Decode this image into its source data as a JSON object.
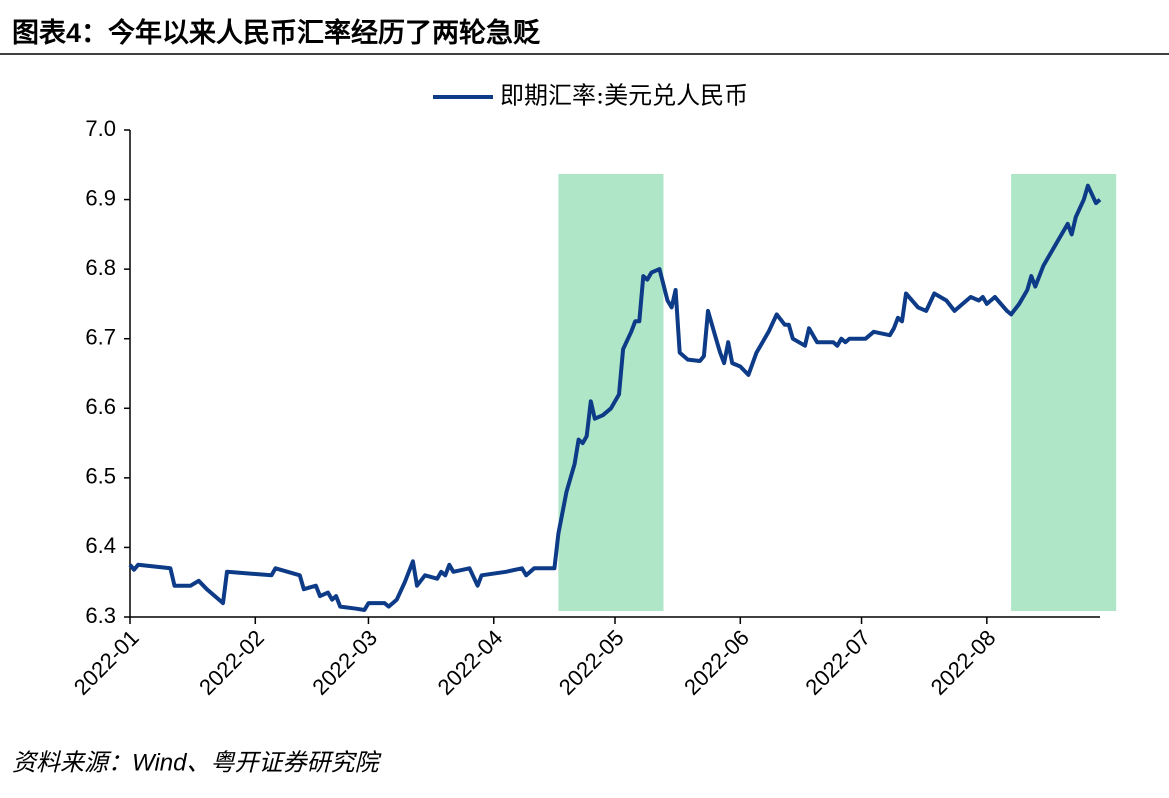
{
  "chart_data": {
    "type": "line",
    "title": "图表4：今年以来人民币汇率经历了两轮急贬",
    "source": "资料来源：Wind、粤开证券研究院",
    "x": [
      0,
      1,
      2,
      10,
      11,
      15,
      17,
      19,
      21,
      23,
      24,
      35,
      36,
      42,
      43,
      46,
      47,
      49,
      50,
      51,
      52,
      56,
      58,
      59,
      63,
      64,
      66,
      68,
      70,
      71,
      73,
      76,
      77,
      78,
      79,
      80,
      84,
      86,
      87,
      93,
      97,
      98,
      100,
      105,
      106,
      108,
      110,
      111,
      112,
      113,
      114,
      115,
      117,
      119,
      121,
      122,
      124,
      125,
      126,
      127,
      128,
      129,
      131,
      133,
      134,
      135,
      136,
      138,
      141,
      142,
      143,
      145,
      146,
      147,
      148,
      149,
      151,
      153,
      155,
      156,
      158,
      160,
      162,
      163,
      164,
      167,
      168,
      170,
      174,
      175,
      176,
      177,
      178,
      182,
      184,
      188,
      189,
      190,
      191,
      192,
      195,
      197,
      199,
      202,
      204,
      206,
      208,
      210,
      211,
      212,
      214,
      217,
      218,
      220,
      222,
      223,
      224,
      226,
      228,
      230,
      232,
      233,
      234,
      236,
      237,
      239,
      240
    ],
    "series": [
      {
        "name": "即期汇率:美元兑人民币",
        "color": "#0d3b87",
        "values": [
          6.375,
          6.368,
          6.375,
          6.37,
          6.345,
          6.345,
          6.352,
          6.34,
          6.33,
          6.32,
          6.365,
          6.36,
          6.37,
          6.36,
          6.34,
          6.345,
          6.33,
          6.335,
          6.325,
          6.33,
          6.315,
          6.312,
          6.31,
          6.32,
          6.32,
          6.315,
          6.325,
          6.35,
          6.38,
          6.345,
          6.36,
          6.355,
          6.365,
          6.36,
          6.375,
          6.365,
          6.37,
          6.345,
          6.36,
          6.365,
          6.37,
          6.36,
          6.37,
          6.37,
          6.42,
          6.48,
          6.52,
          6.555,
          6.55,
          6.56,
          6.61,
          6.585,
          6.59,
          6.6,
          6.62,
          6.685,
          6.71,
          6.725,
          6.725,
          6.79,
          6.785,
          6.795,
          6.8,
          6.755,
          6.745,
          6.77,
          6.68,
          6.67,
          6.668,
          6.675,
          6.74,
          6.7,
          6.68,
          6.665,
          6.695,
          6.665,
          6.66,
          6.648,
          6.68,
          6.69,
          6.71,
          6.735,
          6.72,
          6.72,
          6.7,
          6.69,
          6.715,
          6.695,
          6.695,
          6.69,
          6.7,
          6.695,
          6.7,
          6.7,
          6.71,
          6.705,
          6.715,
          6.73,
          6.725,
          6.765,
          6.745,
          6.74,
          6.765,
          6.755,
          6.74,
          6.75,
          6.76,
          6.755,
          6.76,
          6.75,
          6.76,
          6.74,
          6.735,
          6.75,
          6.77,
          6.79,
          6.775,
          6.805,
          6.825,
          6.845,
          6.865,
          6.85,
          6.875,
          6.9,
          6.92,
          6.895,
          6.9
        ]
      }
    ],
    "shaded_ranges": [
      [
        106,
        132
      ],
      [
        218,
        244
      ]
    ],
    "shade_color": "#b0e6c8",
    "xlim": [
      0,
      240
    ],
    "xticks": [
      {
        "value": 0,
        "label": "2022-01"
      },
      {
        "value": 31,
        "label": "2022-02"
      },
      {
        "value": 59,
        "label": "2022-03"
      },
      {
        "value": 90,
        "label": "2022-04"
      },
      {
        "value": 120,
        "label": "2022-05"
      },
      {
        "value": 151,
        "label": "2022-06"
      },
      {
        "value": 181,
        "label": "2022-07"
      },
      {
        "value": 212,
        "label": "2022-08"
      }
    ],
    "ylim": [
      6.3,
      7.0
    ],
    "yticks": [
      6.3,
      6.4,
      6.5,
      6.6,
      6.7,
      6.8,
      6.9,
      {
        "value": 7.0,
        "label": "7.0"
      }
    ]
  }
}
